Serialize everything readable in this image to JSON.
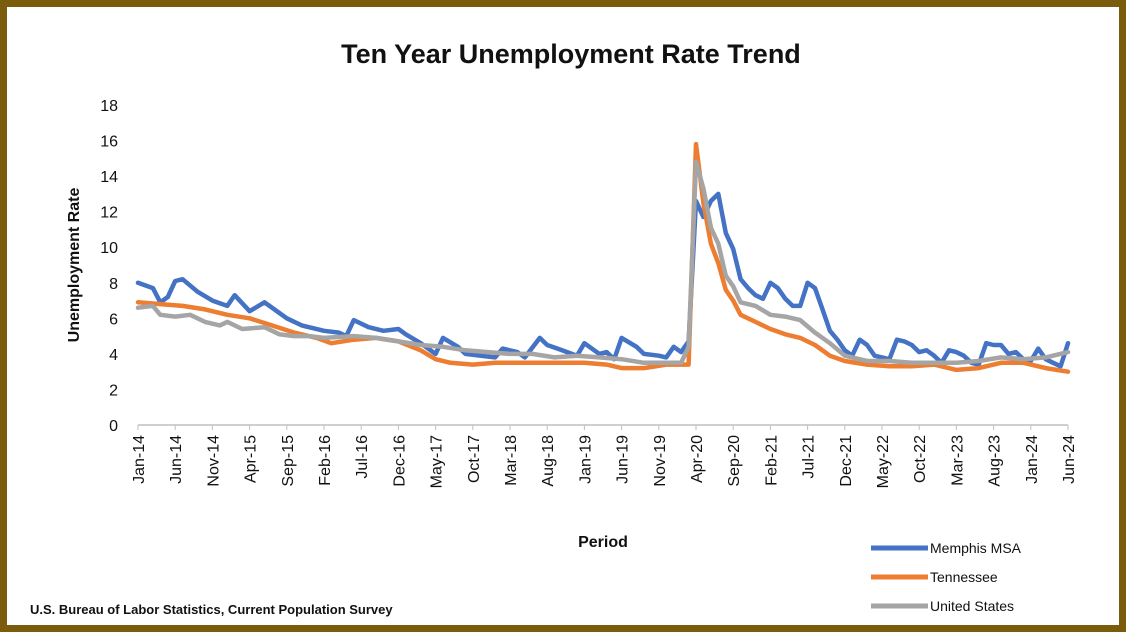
{
  "chart_data": {
    "type": "line",
    "title": "Ten Year Unemployment Rate Trend",
    "xlabel": "Period",
    "ylabel": "Unemployment Rate",
    "ylim": [
      0,
      18
    ],
    "yticks": [
      0,
      2,
      4,
      6,
      8,
      10,
      12,
      14,
      16,
      18
    ],
    "xticks": [
      "Jan-14",
      "Jun-14",
      "Nov-14",
      "Apr-15",
      "Sep-15",
      "Feb-16",
      "Jul-16",
      "Dec-16",
      "May-17",
      "Oct-17",
      "Mar-18",
      "Aug-18",
      "Jan-19",
      "Jun-19",
      "Nov-19",
      "Apr-20",
      "Sep-20",
      "Feb-21",
      "Jul-21",
      "Dec-21",
      "May-22",
      "Oct-22",
      "Mar-23",
      "Aug-23",
      "Jan-24",
      "Jun-24"
    ],
    "grid": false,
    "legend_position": "bottom-right",
    "source": "U.S. Bureau of Labor Statistics, Current Population Survey",
    "series": [
      {
        "name": "Memphis MSA",
        "color": "#4472c4",
        "points": [
          [
            "Jan-14",
            8.0
          ],
          [
            "Mar-14",
            7.7
          ],
          [
            "Apr-14",
            6.9
          ],
          [
            "May-14",
            7.2
          ],
          [
            "Jun-14",
            8.1
          ],
          [
            "Jul-14",
            8.2
          ],
          [
            "Sep-14",
            7.5
          ],
          [
            "Nov-14",
            7.0
          ],
          [
            "Jan-15",
            6.7
          ],
          [
            "Feb-15",
            7.3
          ],
          [
            "Apr-15",
            6.4
          ],
          [
            "Jun-15",
            6.9
          ],
          [
            "Aug-15",
            6.3
          ],
          [
            "Sep-15",
            6.0
          ],
          [
            "Nov-15",
            5.6
          ],
          [
            "Feb-16",
            5.3
          ],
          [
            "Apr-16",
            5.2
          ],
          [
            "May-16",
            5.0
          ],
          [
            "Jun-16",
            5.9
          ],
          [
            "Aug-16",
            5.5
          ],
          [
            "Oct-16",
            5.3
          ],
          [
            "Dec-16",
            5.4
          ],
          [
            "Jan-17",
            5.1
          ],
          [
            "Mar-17",
            4.6
          ],
          [
            "May-17",
            4.0
          ],
          [
            "Jun-17",
            4.9
          ],
          [
            "Aug-17",
            4.4
          ],
          [
            "Sep-17",
            4.0
          ],
          [
            "Nov-17",
            3.9
          ],
          [
            "Jan-18",
            3.8
          ],
          [
            "Feb-18",
            4.3
          ],
          [
            "Apr-18",
            4.1
          ],
          [
            "May-18",
            3.8
          ],
          [
            "Jul-18",
            4.9
          ],
          [
            "Aug-18",
            4.5
          ],
          [
            "Oct-18",
            4.2
          ],
          [
            "Dec-18",
            3.9
          ],
          [
            "Jan-19",
            4.6
          ],
          [
            "Mar-19",
            4.0
          ],
          [
            "Apr-19",
            4.1
          ],
          [
            "May-19",
            3.7
          ],
          [
            "Jun-19",
            4.9
          ],
          [
            "Aug-19",
            4.4
          ],
          [
            "Sep-19",
            4.0
          ],
          [
            "Nov-19",
            3.9
          ],
          [
            "Dec-19",
            3.8
          ],
          [
            "Jan-20",
            4.4
          ],
          [
            "Feb-20",
            4.1
          ],
          [
            "Mar-20",
            4.7
          ],
          [
            "Apr-20",
            12.6
          ],
          [
            "May-20",
            11.7
          ],
          [
            "Jun-20",
            12.6
          ],
          [
            "Jul-20",
            13.0
          ],
          [
            "Aug-20",
            10.8
          ],
          [
            "Sep-20",
            9.9
          ],
          [
            "Oct-20",
            8.2
          ],
          [
            "Nov-20",
            7.7
          ],
          [
            "Dec-20",
            7.3
          ],
          [
            "Jan-21",
            7.1
          ],
          [
            "Feb-21",
            8.0
          ],
          [
            "Mar-21",
            7.7
          ],
          [
            "Apr-21",
            7.1
          ],
          [
            "May-21",
            6.7
          ],
          [
            "Jun-21",
            6.7
          ],
          [
            "Jul-21",
            8.0
          ],
          [
            "Aug-21",
            7.7
          ],
          [
            "Sep-21",
            6.5
          ],
          [
            "Oct-21",
            5.3
          ],
          [
            "Nov-21",
            4.8
          ],
          [
            "Dec-21",
            4.2
          ],
          [
            "Jan-22",
            3.9
          ],
          [
            "Feb-22",
            4.8
          ],
          [
            "Mar-22",
            4.5
          ],
          [
            "Apr-22",
            3.9
          ],
          [
            "May-22",
            3.8
          ],
          [
            "Jun-22",
            3.7
          ],
          [
            "Jul-22",
            4.8
          ],
          [
            "Aug-22",
            4.7
          ],
          [
            "Sep-22",
            4.5
          ],
          [
            "Oct-22",
            4.1
          ],
          [
            "Nov-22",
            4.2
          ],
          [
            "Dec-22",
            3.9
          ],
          [
            "Jan-23",
            3.5
          ],
          [
            "Feb-23",
            4.2
          ],
          [
            "Mar-23",
            4.1
          ],
          [
            "Apr-23",
            3.9
          ],
          [
            "May-23",
            3.5
          ],
          [
            "Jun-23",
            3.4
          ],
          [
            "Jul-23",
            4.6
          ],
          [
            "Aug-23",
            4.5
          ],
          [
            "Sep-23",
            4.5
          ],
          [
            "Oct-23",
            4.0
          ],
          [
            "Nov-23",
            4.1
          ],
          [
            "Dec-23",
            3.7
          ],
          [
            "Jan-24",
            3.6
          ],
          [
            "Feb-24",
            4.3
          ],
          [
            "Mar-24",
            3.7
          ],
          [
            "Apr-24",
            3.5
          ],
          [
            "May-24",
            3.3
          ],
          [
            "Jun-24",
            4.6
          ]
        ]
      },
      {
        "name": "Tennessee",
        "color": "#ed7d31",
        "points": [
          [
            "Jan-14",
            6.9
          ],
          [
            "Apr-14",
            6.8
          ],
          [
            "Jul-14",
            6.7
          ],
          [
            "Oct-14",
            6.5
          ],
          [
            "Jan-15",
            6.2
          ],
          [
            "Apr-15",
            6.0
          ],
          [
            "Jul-15",
            5.6
          ],
          [
            "Oct-15",
            5.2
          ],
          [
            "Jan-16",
            4.9
          ],
          [
            "Mar-16",
            4.6
          ],
          [
            "Jun-16",
            4.8
          ],
          [
            "Sep-16",
            4.9
          ],
          [
            "Dec-16",
            4.7
          ],
          [
            "Mar-17",
            4.2
          ],
          [
            "May-17",
            3.7
          ],
          [
            "Jul-17",
            3.5
          ],
          [
            "Oct-17",
            3.4
          ],
          [
            "Jan-18",
            3.5
          ],
          [
            "Jul-18",
            3.5
          ],
          [
            "Jan-19",
            3.5
          ],
          [
            "Apr-19",
            3.4
          ],
          [
            "Jun-19",
            3.2
          ],
          [
            "Sep-19",
            3.2
          ],
          [
            "Dec-19",
            3.4
          ],
          [
            "Mar-20",
            3.4
          ],
          [
            "Apr-20",
            15.8
          ],
          [
            "May-20",
            12.5
          ],
          [
            "Jun-20",
            10.2
          ],
          [
            "Jul-20",
            9.1
          ],
          [
            "Aug-20",
            7.6
          ],
          [
            "Sep-20",
            7.0
          ],
          [
            "Oct-20",
            6.2
          ],
          [
            "Dec-20",
            5.8
          ],
          [
            "Feb-21",
            5.4
          ],
          [
            "Apr-21",
            5.1
          ],
          [
            "Jun-21",
            4.9
          ],
          [
            "Aug-21",
            4.5
          ],
          [
            "Oct-21",
            3.9
          ],
          [
            "Dec-21",
            3.6
          ],
          [
            "Mar-22",
            3.4
          ],
          [
            "Jun-22",
            3.3
          ],
          [
            "Sep-22",
            3.3
          ],
          [
            "Dec-22",
            3.4
          ],
          [
            "Mar-23",
            3.1
          ],
          [
            "Jun-23",
            3.2
          ],
          [
            "Sep-23",
            3.5
          ],
          [
            "Dec-23",
            3.5
          ],
          [
            "Mar-24",
            3.2
          ],
          [
            "Jun-24",
            3.0
          ]
        ]
      },
      {
        "name": "United States",
        "color": "#a5a5a5",
        "points": [
          [
            "Jan-14",
            6.6
          ],
          [
            "Mar-14",
            6.7
          ],
          [
            "Apr-14",
            6.2
          ],
          [
            "Jun-14",
            6.1
          ],
          [
            "Aug-14",
            6.2
          ],
          [
            "Oct-14",
            5.8
          ],
          [
            "Dec-14",
            5.6
          ],
          [
            "Jan-15",
            5.8
          ],
          [
            "Mar-15",
            5.4
          ],
          [
            "Jun-15",
            5.5
          ],
          [
            "Aug-15",
            5.1
          ],
          [
            "Oct-15",
            5.0
          ],
          [
            "Dec-15",
            5.0
          ],
          [
            "Feb-16",
            4.9
          ],
          [
            "Jun-16",
            5.0
          ],
          [
            "Sep-16",
            4.9
          ],
          [
            "Dec-16",
            4.7
          ],
          [
            "Mar-17",
            4.5
          ],
          [
            "Jun-17",
            4.4
          ],
          [
            "Sep-17",
            4.2
          ],
          [
            "Dec-17",
            4.1
          ],
          [
            "Mar-18",
            4.0
          ],
          [
            "Jun-18",
            4.0
          ],
          [
            "Sep-18",
            3.8
          ],
          [
            "Dec-18",
            3.9
          ],
          [
            "Mar-19",
            3.8
          ],
          [
            "Jun-19",
            3.7
          ],
          [
            "Sep-19",
            3.5
          ],
          [
            "Dec-19",
            3.5
          ],
          [
            "Feb-20",
            3.5
          ],
          [
            "Mar-20",
            4.4
          ],
          [
            "Apr-20",
            14.8
          ],
          [
            "May-20",
            13.3
          ],
          [
            "Jun-20",
            11.1
          ],
          [
            "Jul-20",
            10.2
          ],
          [
            "Aug-20",
            8.4
          ],
          [
            "Sep-20",
            7.8
          ],
          [
            "Oct-20",
            6.9
          ],
          [
            "Dec-20",
            6.7
          ],
          [
            "Feb-21",
            6.2
          ],
          [
            "Apr-21",
            6.1
          ],
          [
            "Jun-21",
            5.9
          ],
          [
            "Aug-21",
            5.2
          ],
          [
            "Oct-21",
            4.6
          ],
          [
            "Dec-21",
            3.9
          ],
          [
            "Mar-22",
            3.6
          ],
          [
            "Jun-22",
            3.6
          ],
          [
            "Sep-22",
            3.5
          ],
          [
            "Dec-22",
            3.5
          ],
          [
            "Mar-23",
            3.5
          ],
          [
            "Jun-23",
            3.6
          ],
          [
            "Sep-23",
            3.8
          ],
          [
            "Dec-23",
            3.7
          ],
          [
            "Mar-24",
            3.8
          ],
          [
            "Jun-24",
            4.1
          ]
        ]
      }
    ]
  }
}
